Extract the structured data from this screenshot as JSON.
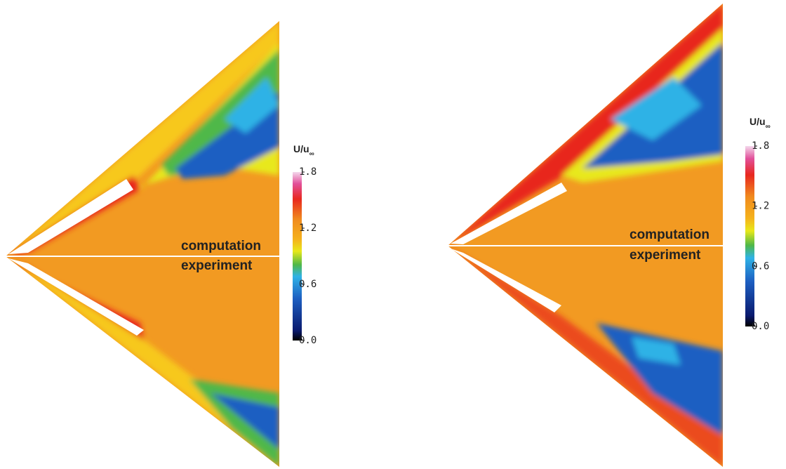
{
  "panels": [
    {
      "labels": {
        "upper": "computation",
        "lower": "experiment"
      },
      "colorbar": {
        "title": "U/u",
        "title_subscript": "∞",
        "ticks": [
          {
            "value": 1.8,
            "label": "1.8"
          },
          {
            "value": 1.2,
            "label": "1.2"
          },
          {
            "value": 0.6,
            "label": "0.6"
          },
          {
            "value": 0,
            "label": "0.0"
          }
        ]
      }
    },
    {
      "labels": {
        "upper": "computation",
        "lower": "experiment"
      },
      "colorbar": {
        "title": "U/u",
        "title_subscript": "∞",
        "ticks": [
          {
            "value": 1.8,
            "label": "1.8"
          },
          {
            "value": 1.2,
            "label": "1.2"
          },
          {
            "value": 0.6,
            "label": "0.6"
          },
          {
            "value": 0,
            "label": "0.0"
          }
        ]
      }
    }
  ]
}
